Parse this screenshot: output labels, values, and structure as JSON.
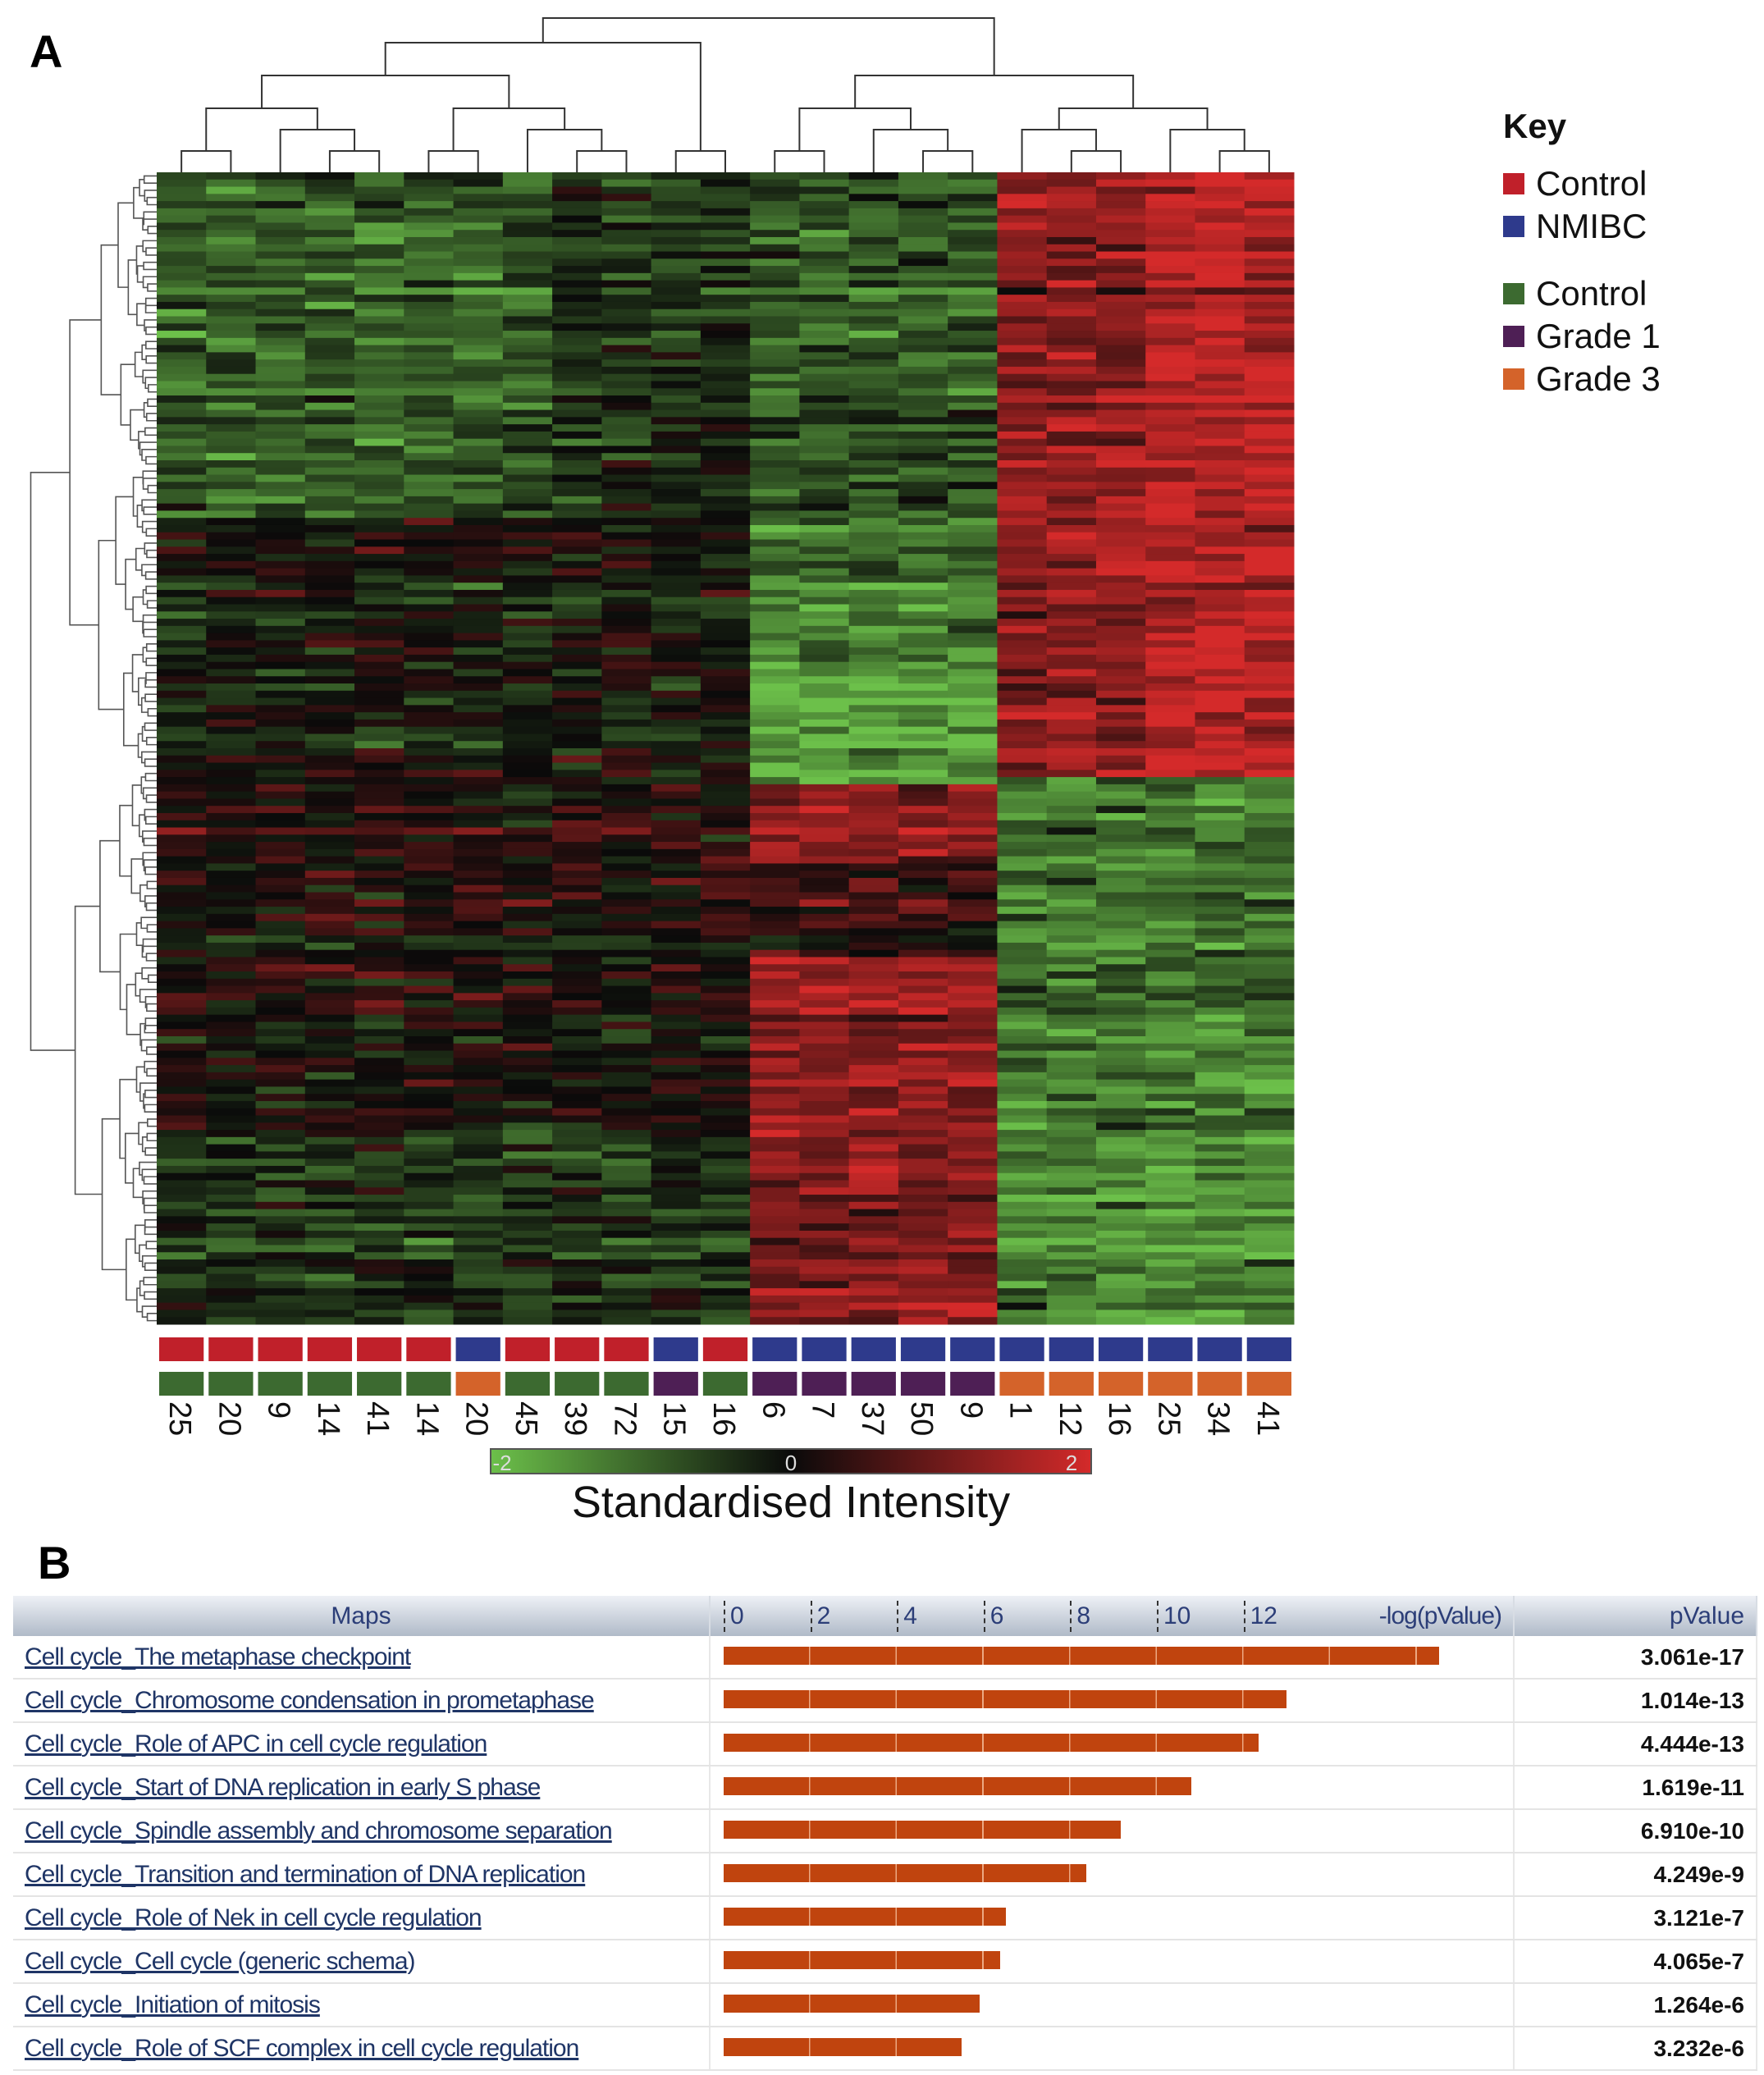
{
  "panel_a_label": "A",
  "panel_b_label": "B",
  "chart_data": [
    {
      "type": "heatmap",
      "title": "",
      "columns": [
        "25",
        "20",
        "9",
        "14",
        "41",
        "14",
        "20",
        "45",
        "39",
        "72",
        "15",
        "16",
        "6",
        "7",
        "37",
        "50",
        "9",
        "1",
        "12",
        "16",
        "25",
        "34",
        "41"
      ],
      "column_group_1": [
        "Control",
        "Control",
        "Control",
        "Control",
        "Control",
        "Control",
        "NMIBC",
        "Control",
        "Control",
        "Control",
        "NMIBC",
        "Control",
        "NMIBC",
        "NMIBC",
        "NMIBC",
        "NMIBC",
        "NMIBC",
        "NMIBC",
        "NMIBC",
        "NMIBC",
        "NMIBC",
        "NMIBC",
        "NMIBC"
      ],
      "column_group_2": [
        "Control",
        "Control",
        "Control",
        "Control",
        "Control",
        "Control",
        "Grade 3",
        "Control",
        "Control",
        "Control",
        "Grade 1",
        "Control",
        "Grade 1",
        "Grade 1",
        "Grade 1",
        "Grade 1",
        "Grade 1",
        "Grade 3",
        "Grade 3",
        "Grade 3",
        "Grade 3",
        "Grade 3",
        "Grade 3"
      ],
      "colorbar": {
        "label": "Standardised Intensity",
        "min_label": "-2",
        "mid_label": "0",
        "max_label": "2",
        "range": [
          -2,
          2
        ],
        "low_color": "#6cc04a",
        "mid_color": "#0a0a0a",
        "high_color": "#d42a2a"
      },
      "legend": {
        "title": "Key",
        "position": "top-right",
        "group_1": [
          {
            "label": "Control",
            "color": "#c0202a"
          },
          {
            "label": "NMIBC",
            "color": "#2e3a8c"
          }
        ],
        "group_2": [
          {
            "label": "Control",
            "color": "#3c6a30"
          },
          {
            "label": "Grade 1",
            "color": "#4e1f55"
          },
          {
            "label": "Grade 3",
            "color": "#d4632a"
          }
        ]
      }
    },
    {
      "type": "bar",
      "orientation": "horizontal",
      "xlabel": "-log(pValue)",
      "xticks": [
        "0",
        "2",
        "4",
        "6",
        "8",
        "10",
        "12"
      ],
      "xlim": [
        0,
        17
      ],
      "bar_color": "#c0440e",
      "columns": {
        "maps": "Maps",
        "pvalue": "pValue"
      },
      "rows": [
        {
          "map": "Cell cycle_The metaphase checkpoint",
          "pvalue": "3.061e-17",
          "neglog": 16.51
        },
        {
          "map": "Cell cycle_Chromosome condensation in prometaphase",
          "pvalue": "1.014e-13",
          "neglog": 12.99
        },
        {
          "map": "Cell cycle_Role of APC in cell cycle regulation",
          "pvalue": "4.444e-13",
          "neglog": 12.35
        },
        {
          "map": "Cell cycle_Start of DNA replication in early S phase",
          "pvalue": "1.619e-11",
          "neglog": 10.79
        },
        {
          "map": "Cell cycle_Spindle assembly and chromosome separation",
          "pvalue": "6.910e-10",
          "neglog": 9.16
        },
        {
          "map": "Cell cycle_Transition and termination of DNA replication",
          "pvalue": "4.249e-9",
          "neglog": 8.37
        },
        {
          "map": "Cell cycle_Role of Nek in cell cycle regulation",
          "pvalue": "3.121e-7",
          "neglog": 6.51
        },
        {
          "map": "Cell cycle_Cell cycle (generic schema)",
          "pvalue": "4.065e-7",
          "neglog": 6.39
        },
        {
          "map": "Cell cycle_Initiation of mitosis",
          "pvalue": "1.264e-6",
          "neglog": 5.9
        },
        {
          "map": "Cell cycle_Role of SCF complex in cell cycle regulation",
          "pvalue": "3.232e-6",
          "neglog": 5.49
        }
      ]
    }
  ]
}
